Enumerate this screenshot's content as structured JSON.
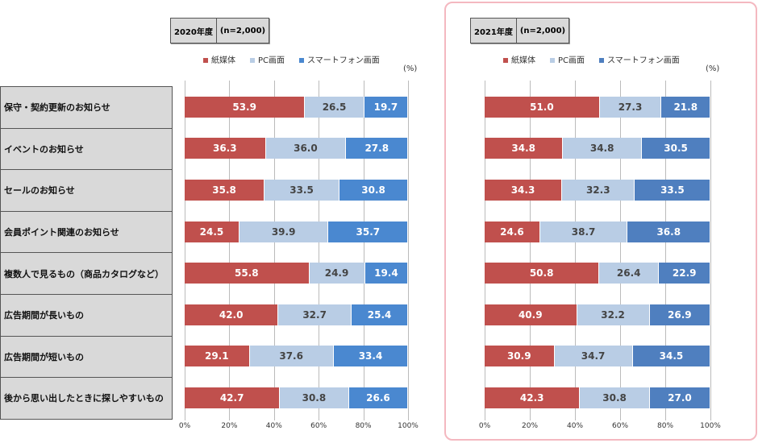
{
  "chart_data": [
    {
      "type": "bar",
      "stacked": true,
      "orientation": "horizontal",
      "title": "2020年度",
      "n_label": "(n=2,000)",
      "unit": "(%)",
      "categories": [
        "保守・契約更新のお知らせ",
        "イベントのお知らせ",
        "セールのお知らせ",
        "会員ポイント関連のお知らせ",
        "複数人で見るもの（商品カタログなど）",
        "広告期間が長いもの",
        "広告期間が短いもの",
        "後から思い出したときに探しやすいもの"
      ],
      "series": [
        {
          "name": "紙媒体",
          "color": "#c0504d",
          "values": [
            53.9,
            36.3,
            35.8,
            24.5,
            55.8,
            42.0,
            29.1,
            42.7
          ]
        },
        {
          "name": "PC画面",
          "color": "#b9cde5",
          "values": [
            26.5,
            36.0,
            33.5,
            39.9,
            24.9,
            32.7,
            37.6,
            30.8
          ]
        },
        {
          "name": "スマートフォン画面",
          "color": "#4a88d0",
          "values": [
            19.7,
            27.8,
            30.8,
            35.7,
            19.4,
            25.4,
            33.4,
            26.6
          ]
        }
      ],
      "xlim": [
        0,
        100
      ],
      "xticks": [
        "0%",
        "20%",
        "40%",
        "60%",
        "80%",
        "100%"
      ],
      "legend": "top"
    },
    {
      "type": "bar",
      "stacked": true,
      "orientation": "horizontal",
      "title": "2021年度",
      "n_label": "(n=2,000)",
      "unit": "(%)",
      "categories": [
        "保守・契約更新のお知らせ",
        "イベントのお知らせ",
        "セールのお知らせ",
        "会員ポイント関連のお知らせ",
        "複数人で見るもの（商品カタログなど）",
        "広告期間が長いもの",
        "広告期間が短いもの",
        "後から思い出したときに探しやすいもの"
      ],
      "series": [
        {
          "name": "紙媒体",
          "color": "#c0504d",
          "values": [
            51.0,
            34.8,
            34.3,
            24.6,
            50.8,
            40.9,
            30.9,
            42.3
          ]
        },
        {
          "name": "PC画面",
          "color": "#b9cde5",
          "values": [
            27.3,
            34.8,
            32.3,
            38.7,
            26.4,
            32.2,
            34.7,
            30.8
          ]
        },
        {
          "name": "スマートフォン画面",
          "color": "#4f7fbf",
          "values": [
            21.8,
            30.5,
            33.5,
            36.8,
            22.9,
            26.9,
            34.5,
            27.0
          ]
        }
      ],
      "xlim": [
        0,
        100
      ],
      "xticks": [
        "0%",
        "20%",
        "40%",
        "60%",
        "80%",
        "100%"
      ],
      "legend": "top"
    }
  ]
}
